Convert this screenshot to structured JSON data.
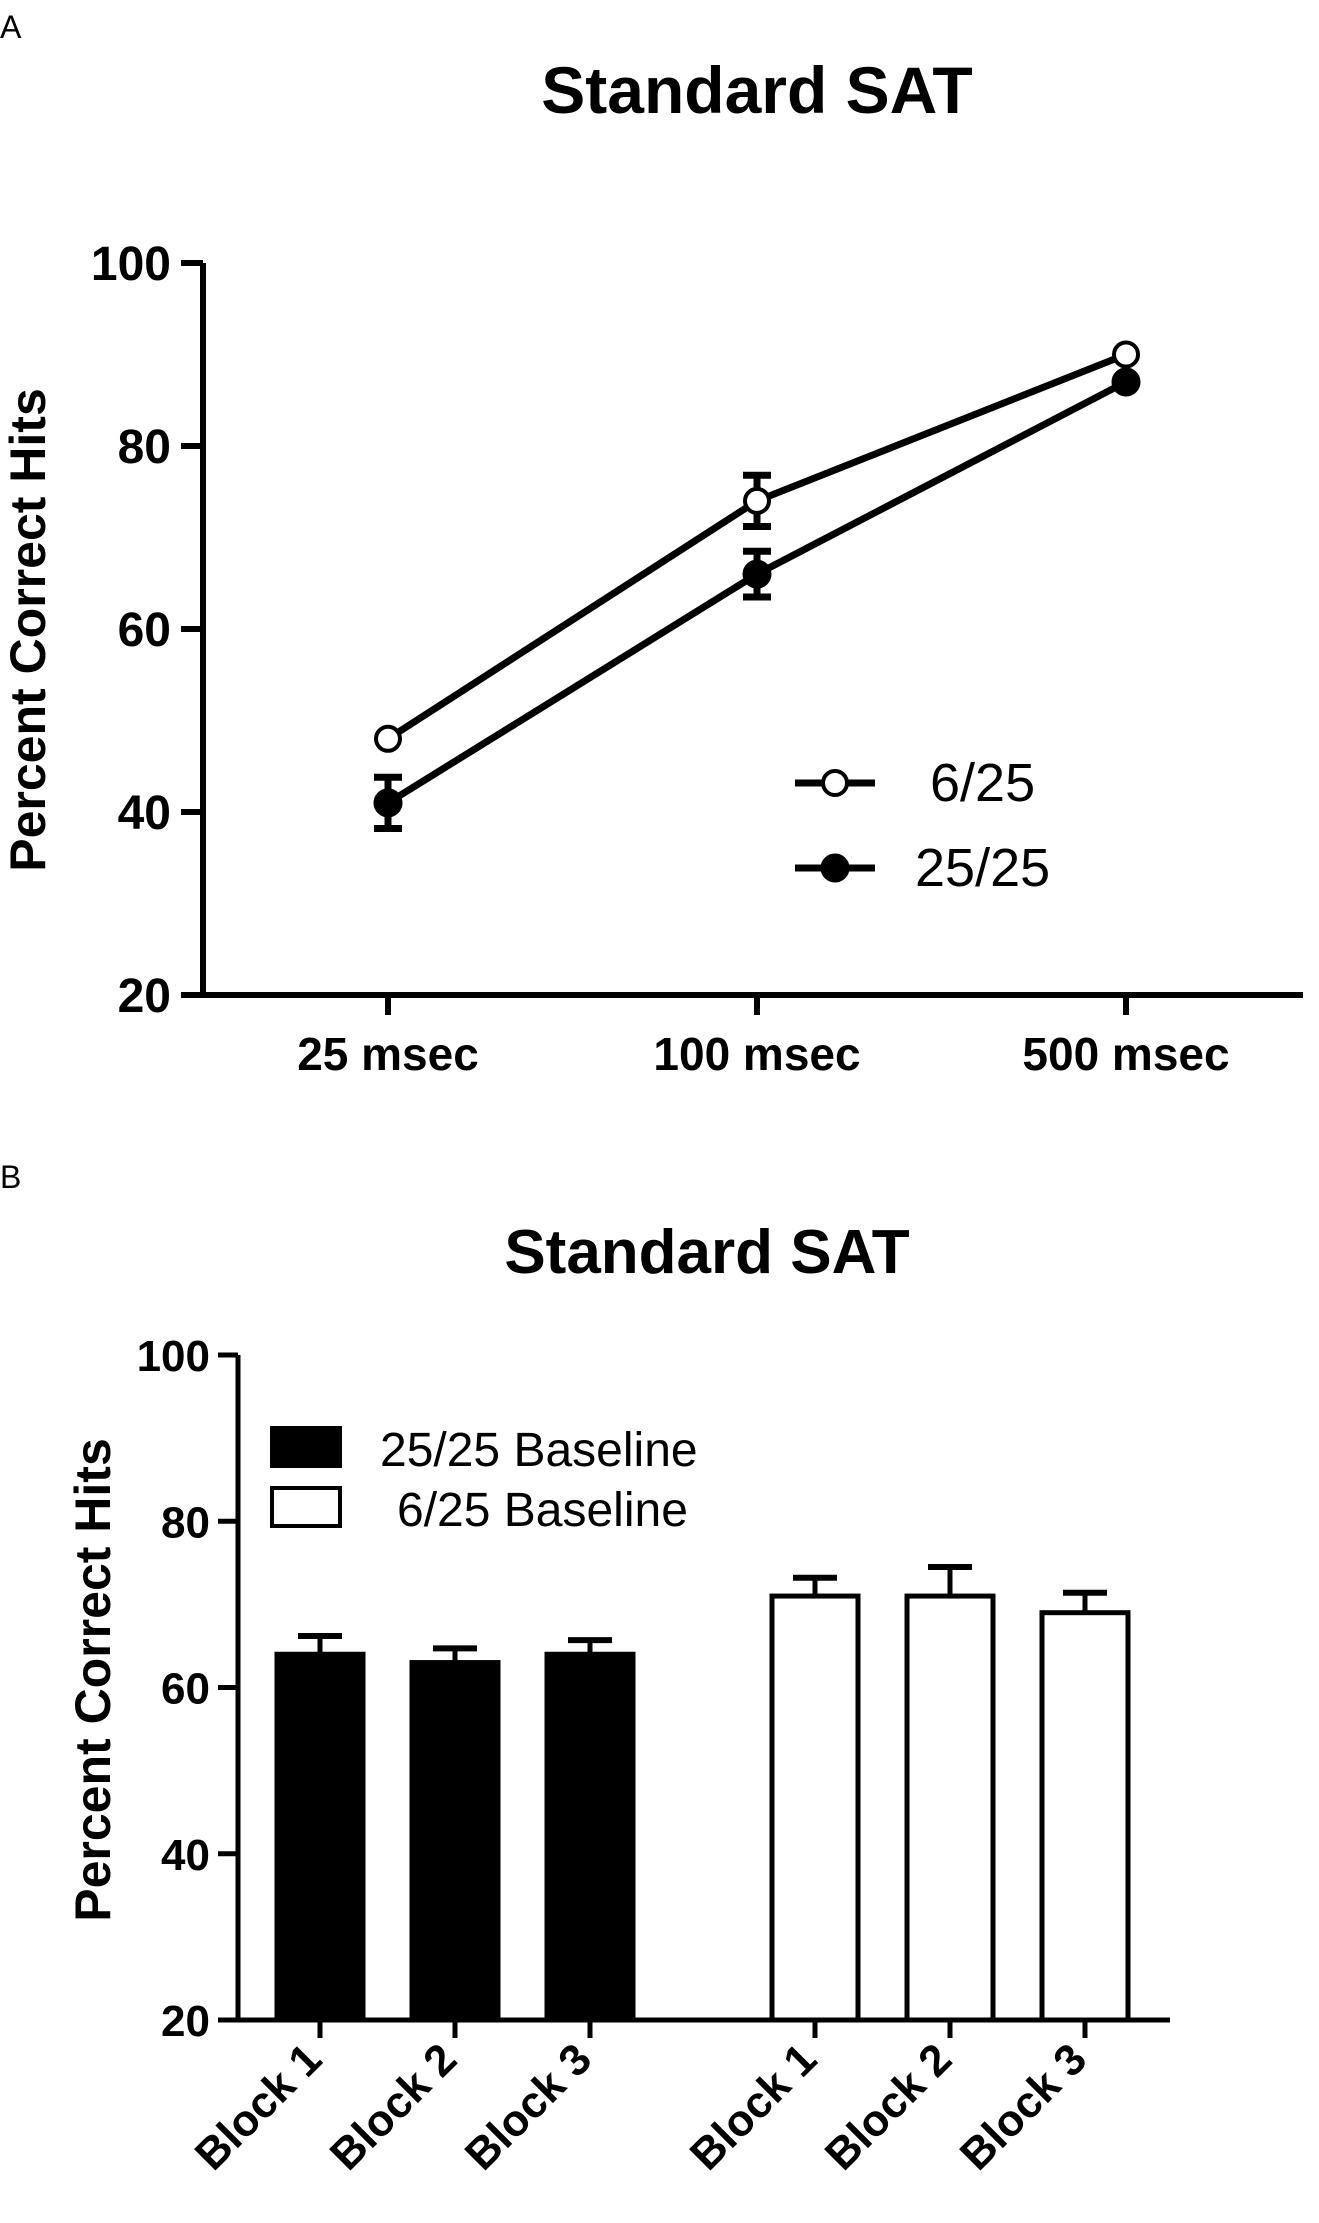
{
  "chart_data": [
    {
      "panel": "A",
      "type": "line",
      "title": "Standard SAT",
      "xlabel": "",
      "ylabel": "Percent Correct Hits",
      "ylim": [
        20,
        100
      ],
      "yticks": [
        20,
        40,
        60,
        80,
        100
      ],
      "categories": [
        "25 msec",
        "100 msec",
        "500 msec"
      ],
      "series": [
        {
          "name": "6/25",
          "marker": "open-circle",
          "values": [
            48,
            74,
            90
          ],
          "errors": [
            0.5,
            2.8,
            0.5
          ]
        },
        {
          "name": "25/25",
          "marker": "filled-circle",
          "values": [
            41,
            66,
            87
          ],
          "errors": [
            2.8,
            2.5,
            0.5
          ]
        }
      ],
      "legend": [
        "6/25",
        "25/25"
      ]
    },
    {
      "panel": "B",
      "type": "bar",
      "title": "Standard SAT",
      "xlabel": "",
      "ylabel": "Percent Correct Hits",
      "ylim": [
        20,
        100
      ],
      "yticks": [
        20,
        40,
        60,
        80,
        100
      ],
      "groups": [
        {
          "name": "25/25 Baseline",
          "fill": "#000000",
          "categories": [
            "Block 1",
            "Block 2",
            "Block 3"
          ],
          "values": [
            64,
            63,
            64
          ],
          "errors": [
            2.2,
            1.7,
            1.7
          ]
        },
        {
          "name": "6/25 Baseline",
          "fill": "#ffffff",
          "categories": [
            "Block 1",
            "Block 2",
            "Block 3"
          ],
          "values": [
            71,
            71,
            69
          ],
          "errors": [
            2.2,
            3.5,
            2.4
          ]
        }
      ],
      "legend": [
        "25/25 Baseline",
        "6/25 Baseline"
      ]
    }
  ]
}
